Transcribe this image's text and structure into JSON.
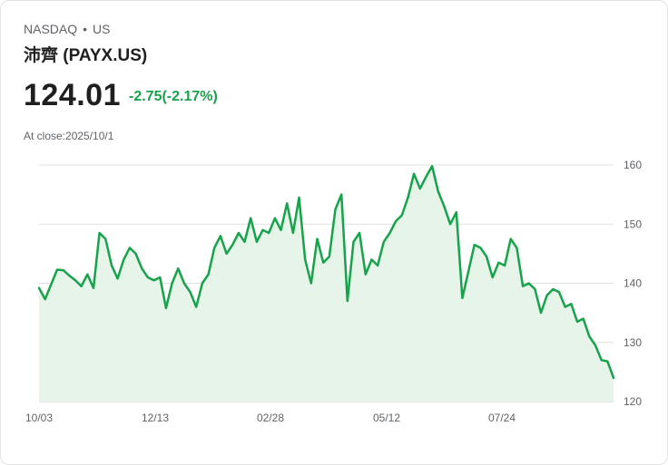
{
  "header": {
    "exchange": "NASDAQ",
    "separator": "•",
    "region": "US",
    "name": "沛齊 (PAYX.US)",
    "price": "124.01",
    "change": "-2.75(-2.17%)",
    "close_label": "At close:",
    "close_date": "2025/10/1"
  },
  "colors": {
    "line": "#16a34a",
    "fill": "#e6f4ea",
    "grid": "#e0e0e0",
    "text": "#1f1f1f",
    "muted": "#5f6368"
  },
  "chart_data": {
    "type": "area",
    "title": "",
    "xlabel": "",
    "ylabel": "",
    "ylim": [
      120,
      160
    ],
    "yticks": [
      120,
      130,
      140,
      150,
      160
    ],
    "xtick_labels": [
      "10/03",
      "12/13",
      "02/28",
      "05/12",
      "07/24"
    ],
    "grid": "horizontal",
    "series": [
      {
        "values": [
          139.2,
          137.3,
          139.8,
          142.3,
          142.2,
          141.3,
          140.5,
          139.5,
          141.5,
          139.2,
          148.5,
          147.5,
          143.0,
          140.8,
          144.0,
          146.0,
          145.0,
          142.5,
          141.0,
          140.5,
          141.0,
          135.8,
          140.0,
          142.5,
          140.0,
          138.5,
          136.0,
          140.0,
          141.5,
          146.0,
          148.0,
          145.0,
          146.5,
          148.5,
          147.0,
          151.0,
          147.0,
          149.0,
          148.5,
          151.0,
          149.0,
          153.5,
          148.5,
          154.5,
          144.0,
          140.0,
          147.5,
          143.5,
          144.5,
          152.5,
          155.0,
          137.0,
          147.0,
          148.5,
          141.5,
          144.0,
          143.0,
          147.0,
          148.5,
          150.5,
          151.5,
          154.5,
          158.5,
          156.0,
          158.0,
          159.8,
          155.5,
          153.0,
          150.0,
          152.0,
          137.5,
          142.0,
          146.5,
          146.0,
          144.5,
          141.0,
          143.5,
          143.0,
          147.5,
          146.0,
          139.5,
          140.0,
          139.0,
          135.0,
          138.0,
          139.0,
          138.5,
          136.0,
          136.5,
          133.5,
          134.0,
          131.0,
          129.5,
          127.0,
          126.8,
          124.0
        ]
      }
    ]
  }
}
